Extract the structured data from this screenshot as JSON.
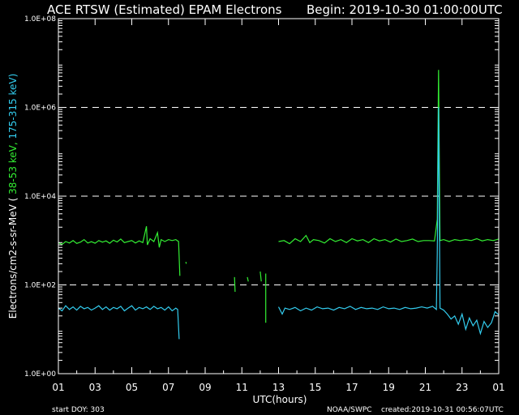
{
  "title": "ACE RTSW (Estimated) EPAM Electrons",
  "begin_label": "Begin: 2019-10-30 01:00:00UTC",
  "footer": {
    "start_doy": "start DOY:  303",
    "credit": "NOAA/SWPC",
    "created": "created:2019-10-31 00:56:07UTC"
  },
  "colors": {
    "background": "#000000",
    "axes": "#ffffff",
    "low_energy": "#33ee33",
    "high_energy": "#33ccee"
  },
  "chart_data": {
    "type": "line",
    "xlabel": "UTC(hours)",
    "ylabel": {
      "prefix": "Electrons/cm2-s-sr-MeV  (",
      "low": " 38-53 keV,",
      "high": "  175-315 keV)"
    },
    "xlim": [
      0,
      24
    ],
    "ylim": [
      1,
      100000000
    ],
    "yscale": "log",
    "x_ticks": [
      {
        "x": 0,
        "label": "01"
      },
      {
        "x": 2,
        "label": "03"
      },
      {
        "x": 4,
        "label": "05"
      },
      {
        "x": 6,
        "label": "07"
      },
      {
        "x": 8,
        "label": "09"
      },
      {
        "x": 10,
        "label": "11"
      },
      {
        "x": 12,
        "label": "13"
      },
      {
        "x": 14,
        "label": "15"
      },
      {
        "x": 16,
        "label": "17"
      },
      {
        "x": 18,
        "label": "19"
      },
      {
        "x": 20,
        "label": "21"
      },
      {
        "x": 22,
        "label": "23"
      },
      {
        "x": 24,
        "label": "01"
      }
    ],
    "y_ticks": [
      {
        "y": 1,
        "label": "1.0E+00"
      },
      {
        "y": 100,
        "label": "1.0E+02"
      },
      {
        "y": 10000,
        "label": "1.0E+04"
      },
      {
        "y": 1000000,
        "label": "1.0E+06"
      },
      {
        "y": 100000000,
        "label": "1.0E+08"
      }
    ],
    "dashed_gridlines": [
      100,
      10000,
      1000000
    ],
    "series": [
      {
        "key": "low_energy",
        "segments": [
          [
            [
              0,
              900
            ],
            [
              0.2,
              820
            ],
            [
              0.4,
              950
            ],
            [
              0.6,
              880
            ],
            [
              0.8,
              1000
            ],
            [
              1.0,
              860
            ],
            [
              1.2,
              920
            ],
            [
              1.4,
              1050
            ],
            [
              1.6,
              880
            ],
            [
              1.8,
              940
            ],
            [
              2.0,
              870
            ],
            [
              2.2,
              1000
            ],
            [
              2.4,
              920
            ],
            [
              2.6,
              980
            ],
            [
              2.8,
              870
            ],
            [
              3.0,
              1020
            ],
            [
              3.2,
              930
            ],
            [
              3.4,
              1080
            ],
            [
              3.6,
              900
            ],
            [
              3.8,
              950
            ],
            [
              4.0,
              1000
            ],
            [
              4.2,
              880
            ],
            [
              4.4,
              980
            ],
            [
              4.6,
              900
            ],
            [
              4.8,
              2100
            ],
            [
              4.85,
              800
            ],
            [
              5.0,
              1100
            ],
            [
              5.2,
              950
            ],
            [
              5.4,
              1500
            ],
            [
              5.5,
              700
            ],
            [
              5.6,
              1050
            ],
            [
              5.8,
              950
            ],
            [
              6.0,
              1050
            ],
            [
              6.2,
              1000
            ],
            [
              6.4,
              1050
            ],
            [
              6.55,
              950
            ],
            [
              6.62,
              160
            ]
          ],
          [
            [
              12.0,
              950
            ],
            [
              12.3,
              1000
            ],
            [
              12.6,
              850
            ],
            [
              12.9,
              1100
            ],
            [
              13.2,
              950
            ],
            [
              13.5,
              1300
            ],
            [
              13.7,
              900
            ],
            [
              13.9,
              1050
            ],
            [
              14.2,
              1000
            ],
            [
              14.5,
              880
            ],
            [
              14.8,
              1100
            ],
            [
              15.1,
              950
            ],
            [
              15.4,
              1050
            ],
            [
              15.7,
              900
            ],
            [
              16.0,
              1100
            ],
            [
              16.3,
              980
            ],
            [
              16.6,
              1050
            ],
            [
              16.9,
              900
            ],
            [
              17.2,
              1100
            ],
            [
              17.5,
              980
            ],
            [
              17.8,
              1050
            ],
            [
              18.1,
              920
            ],
            [
              18.4,
              1080
            ],
            [
              18.7,
              950
            ],
            [
              19.0,
              1000
            ],
            [
              19.3,
              1080
            ],
            [
              19.6,
              950
            ],
            [
              19.9,
              1000
            ],
            [
              20.2,
              1000
            ],
            [
              20.5,
              980
            ],
            [
              20.65,
              3000
            ],
            [
              20.72,
              7000000
            ],
            [
              20.8,
              1000
            ],
            [
              21.0,
              1050
            ],
            [
              21.3,
              950
            ],
            [
              21.6,
              1050
            ],
            [
              21.9,
              1000
            ],
            [
              22.2,
              1050
            ],
            [
              22.5,
              1000
            ],
            [
              22.8,
              1100
            ],
            [
              23.1,
              980
            ],
            [
              23.4,
              1050
            ],
            [
              23.7,
              1000
            ],
            [
              24.0,
              1080
            ]
          ]
        ],
        "isolated": [
          [
            [
              9.6,
              150
            ],
            [
              9.63,
              70
            ]
          ],
          [
            [
              10.3,
              150
            ],
            [
              10.35,
              120
            ]
          ],
          [
            [
              11.0,
              200
            ],
            [
              11.06,
              120
            ]
          ],
          [
            [
              11.3,
              180
            ],
            [
              11.3,
              14
            ]
          ],
          [
            [
              6.95,
              330
            ],
            [
              6.97,
              300
            ]
          ]
        ]
      },
      {
        "key": "high_energy",
        "segments": [
          [
            [
              0,
              30
            ],
            [
              0.2,
              26
            ],
            [
              0.4,
              34
            ],
            [
              0.6,
              28
            ],
            [
              0.8,
              32
            ],
            [
              1.0,
              27
            ],
            [
              1.2,
              33
            ],
            [
              1.4,
              29
            ],
            [
              1.6,
              31
            ],
            [
              1.8,
              27
            ],
            [
              2.0,
              30
            ],
            [
              2.2,
              34
            ],
            [
              2.4,
              28
            ],
            [
              2.6,
              32
            ],
            [
              2.8,
              27
            ],
            [
              3.0,
              31
            ],
            [
              3.2,
              29
            ],
            [
              3.4,
              33
            ],
            [
              3.6,
              26
            ],
            [
              3.8,
              30
            ],
            [
              4.0,
              34
            ],
            [
              4.2,
              27
            ],
            [
              4.4,
              31
            ],
            [
              4.6,
              29
            ],
            [
              4.8,
              32
            ],
            [
              5.0,
              28
            ],
            [
              5.2,
              33
            ],
            [
              5.4,
              29
            ],
            [
              5.6,
              31
            ],
            [
              5.8,
              27
            ],
            [
              6.0,
              32
            ],
            [
              6.2,
              26
            ],
            [
              6.4,
              30
            ],
            [
              6.5,
              28
            ],
            [
              6.58,
              6
            ]
          ],
          [
            [
              12.0,
              32
            ],
            [
              12.2,
              22
            ],
            [
              12.35,
              30
            ],
            [
              12.6,
              28
            ],
            [
              12.9,
              31
            ],
            [
              13.2,
              26
            ],
            [
              13.5,
              30
            ],
            [
              13.8,
              27
            ],
            [
              14.1,
              32
            ],
            [
              14.4,
              29
            ],
            [
              14.7,
              30
            ],
            [
              15.0,
              27
            ],
            [
              15.3,
              31
            ],
            [
              15.6,
              29
            ],
            [
              15.9,
              33
            ],
            [
              16.2,
              28
            ],
            [
              16.5,
              31
            ],
            [
              16.8,
              29
            ],
            [
              17.1,
              30
            ],
            [
              17.4,
              28
            ],
            [
              17.7,
              32
            ],
            [
              18.0,
              29
            ],
            [
              18.3,
              30
            ],
            [
              18.6,
              28
            ],
            [
              18.9,
              31
            ],
            [
              19.2,
              29
            ],
            [
              19.5,
              30
            ],
            [
              19.8,
              32
            ],
            [
              20.1,
              30
            ],
            [
              20.4,
              33
            ],
            [
              20.6,
              28
            ],
            [
              20.65,
              500
            ],
            [
              20.72,
              1000000
            ],
            [
              20.8,
              30
            ],
            [
              21.0,
              27
            ],
            [
              21.2,
              22
            ],
            [
              21.4,
              17
            ],
            [
              21.6,
              20
            ],
            [
              21.8,
              13
            ],
            [
              22.0,
              22
            ],
            [
              22.2,
              10
            ],
            [
              22.4,
              18
            ],
            [
              22.6,
              12
            ],
            [
              22.8,
              16
            ],
            [
              23.0,
              8
            ],
            [
              23.2,
              15
            ],
            [
              23.4,
              11
            ],
            [
              23.6,
              14
            ],
            [
              23.8,
              25
            ],
            [
              24.0,
              21
            ]
          ]
        ],
        "isolated": []
      }
    ]
  }
}
